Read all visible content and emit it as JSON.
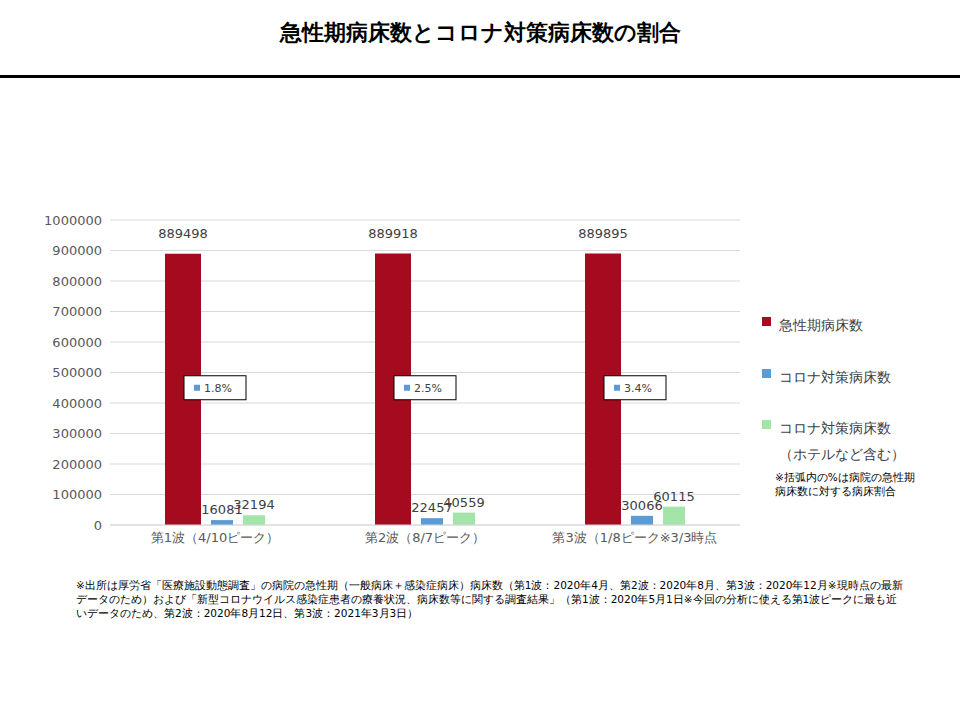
{
  "chart_data": {
    "type": "bar",
    "title": "急性期病床数とコロナ対策病床数の割合",
    "categories": [
      "第1波（4/10ピーク）",
      "第2波（8/7ピーク）",
      "第3波（1/8ピーク※3/3時点"
    ],
    "series": [
      {
        "name": "急性期病床数",
        "color": "#A50A1E",
        "values": [
          889498,
          889918,
          889895
        ]
      },
      {
        "name": "コロナ対策病床数",
        "color": "#5B9BD5",
        "values": [
          16081,
          22457,
          30066
        ]
      },
      {
        "name": "コロナ対策病床数（ホテルなど含む）",
        "color": "#A3E4A8",
        "values": [
          32194,
          40559,
          60115
        ]
      }
    ],
    "ylim": [
      0,
      1000000
    ],
    "yticks": [
      0,
      100000,
      200000,
      300000,
      400000,
      500000,
      600000,
      700000,
      800000,
      900000,
      1000000
    ],
    "grid": true,
    "data_labels": true,
    "legend": "right",
    "annotations": [
      {
        "category": "第1波（4/10ピーク）",
        "text": "1.8%"
      },
      {
        "category": "第2波（8/7ピーク）",
        "text": "2.5%"
      },
      {
        "category": "第3波（1/8ピーク※3/3時点",
        "text": "3.4%"
      }
    ],
    "note": "※括弧内の%は病院の急性期病床数に対する病床割合",
    "source": "※出所は厚労省「医療施設動態調査」の病院の急性期（一般病床＋感染症病床）病床数（第1波：2020年4月、第2波：2020年8月、第3波：2020年12月※現時点の最新データのため）および「新型コロナウイルス感染症患者の療養状況、病床数等に関する調査結果」（第1波：2020年5月1日※今回の分析に使える第1波ピークに最も近いデータのため、第2波：2020年8月12日、第3波：2021年3月3日）"
  }
}
